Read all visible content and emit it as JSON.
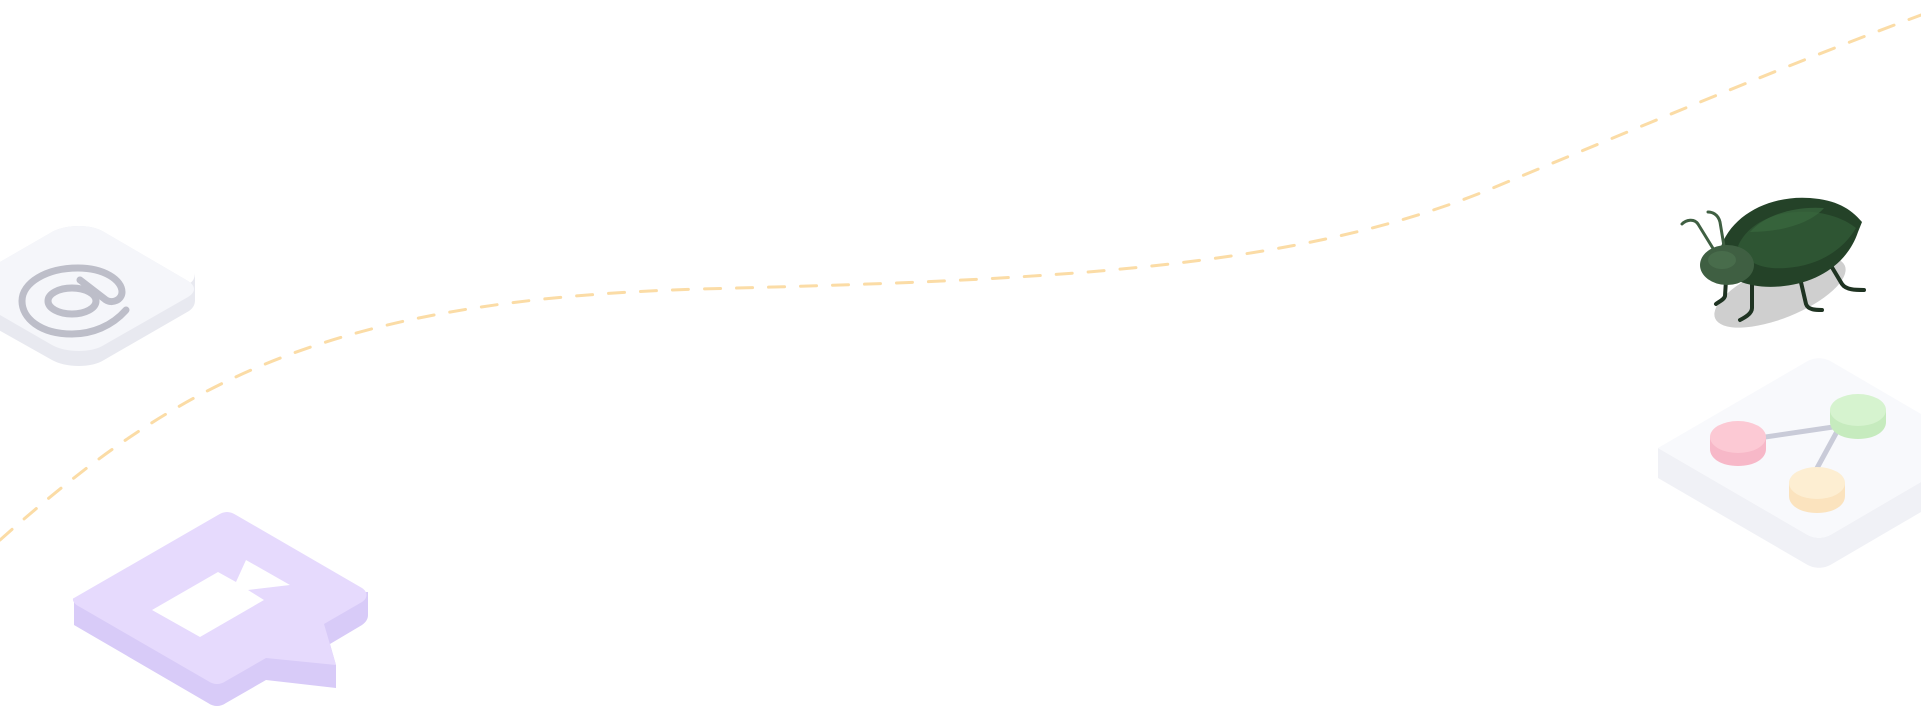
{
  "illustration": {
    "path_color": "#FBDCA6",
    "icons": [
      {
        "icon": "at-sign-icon",
        "color": "#BDBEC9",
        "tile_color": "#F5F6FA"
      },
      {
        "icon": "video-chat-bubble-icon",
        "color": "#E6DAFD",
        "side_color": "#D8CBF8"
      },
      {
        "icon": "beetle-icon",
        "color": "#2A4A2E"
      },
      {
        "icon": "network-graph-icon",
        "node_colors": [
          "#FCC9D4",
          "#D6F3CF",
          "#FDEED2"
        ],
        "edge_color": "#C9CBD8"
      }
    ]
  }
}
